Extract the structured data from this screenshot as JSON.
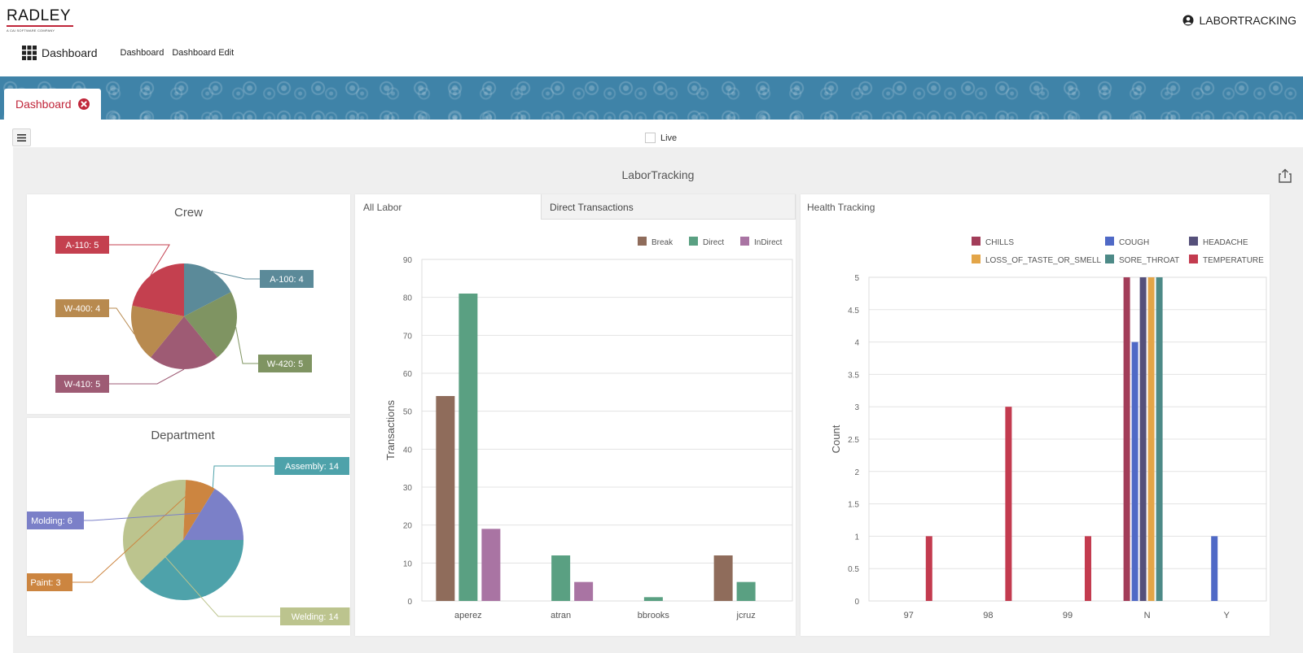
{
  "header": {
    "logo_text": "RADLEY",
    "logo_tagline": "A CAI SOFTWARE COMPANY",
    "user_label": "LABORTRACKING",
    "nav_title": "Dashboard",
    "nav_links": [
      "Dashboard",
      "Dashboard Edit"
    ]
  },
  "tab": {
    "label": "Dashboard"
  },
  "toolbar": {
    "live_label": "Live"
  },
  "workspace": {
    "title": "LaborTracking"
  },
  "colors": {
    "accent_red": "#c0263a",
    "banner": "#3f83a8"
  },
  "crew": {
    "chart_data": {
      "type": "pie",
      "title": "Crew",
      "slices": [
        {
          "label": "A-100: 4",
          "value": 4,
          "color": "#5b8a99"
        },
        {
          "label": "W-420: 5",
          "value": 5,
          "color": "#7f9462"
        },
        {
          "label": "W-410: 5",
          "value": 5,
          "color": "#9e5b74"
        },
        {
          "label": "W-400: 4",
          "value": 4,
          "color": "#b88a4f"
        },
        {
          "label": "A-110: 5",
          "value": 5,
          "color": "#c4404f"
        }
      ]
    }
  },
  "department": {
    "chart_data": {
      "type": "pie",
      "title": "Department",
      "slices": [
        {
          "label": "Assembly: 14",
          "value": 14,
          "color": "#4ea2aa"
        },
        {
          "label": "Welding: 14",
          "value": 14,
          "color": "#bcc48e"
        },
        {
          "label": "Paint: 3",
          "value": 3,
          "color": "#cc8540"
        },
        {
          "label": "Molding: 6",
          "value": 6,
          "color": "#7b80c8"
        }
      ]
    }
  },
  "labor": {
    "tabs": [
      "All Labor",
      "Direct Transactions"
    ],
    "chart_data": {
      "type": "bar",
      "categories": [
        "aperez",
        "atran",
        "bbrooks",
        "jcruz"
      ],
      "series": [
        {
          "name": "Break",
          "color": "#8f6c5b",
          "values": [
            54,
            0,
            0,
            12
          ]
        },
        {
          "name": "Direct",
          "color": "#5aa082",
          "values": [
            81,
            12,
            1,
            5
          ]
        },
        {
          "name": "InDirect",
          "color": "#a974a3",
          "values": [
            19,
            5,
            0,
            0
          ]
        }
      ],
      "ylabel": "Transactions",
      "ylim": [
        0,
        90
      ],
      "yticks": [
        0,
        10,
        20,
        30,
        40,
        50,
        60,
        70,
        80,
        90
      ],
      "legend": "top-right"
    }
  },
  "health": {
    "title": "Health Tracking",
    "chart_data": {
      "type": "bar",
      "categories": [
        "97",
        "98",
        "99",
        "N",
        "Y"
      ],
      "series": [
        {
          "name": "CHILLS",
          "color": "#a23d59",
          "values": [
            0,
            0,
            0,
            5,
            0
          ]
        },
        {
          "name": "COUGH",
          "color": "#4f69c6",
          "values": [
            0,
            0,
            0,
            4,
            1
          ]
        },
        {
          "name": "HEADACHE",
          "color": "#55507a",
          "values": [
            0,
            0,
            0,
            5,
            0
          ]
        },
        {
          "name": "LOSS_OF_TASTE_OR_SMELL",
          "color": "#e3a548",
          "values": [
            0,
            0,
            0,
            5,
            0
          ]
        },
        {
          "name": "SORE_THROAT",
          "color": "#4d8a87",
          "values": [
            0,
            0,
            0,
            5,
            0
          ]
        },
        {
          "name": "TEMPERATURE",
          "color": "#c33b4f",
          "values": [
            1,
            3,
            1,
            0,
            0
          ]
        }
      ],
      "ylabel": "Count",
      "ylim": [
        0,
        5
      ],
      "yticks": [
        "0",
        "0.5",
        "1",
        "1.5",
        "2",
        "2.5",
        "3",
        "3.5",
        "4",
        "4.5",
        "5"
      ],
      "legend": "top"
    }
  }
}
